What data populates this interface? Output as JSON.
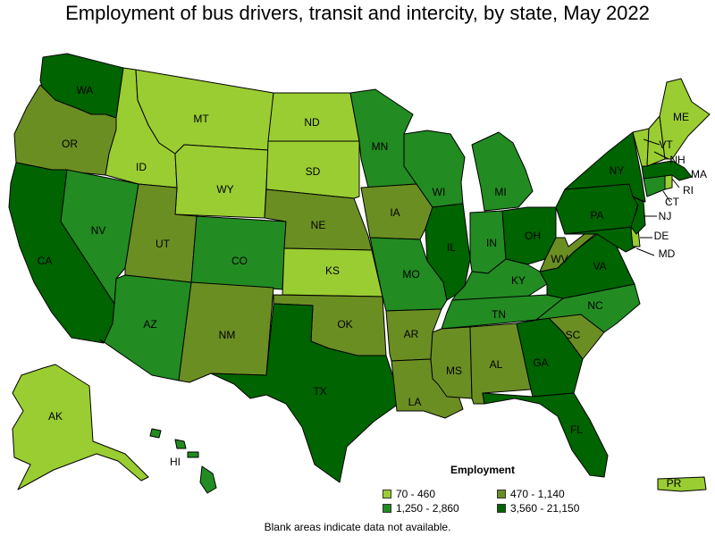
{
  "title": "Employment of bus drivers, transit and intercity, by state, May 2022",
  "legend": {
    "title": "Employment",
    "items": [
      {
        "label": "70 - 460",
        "color": "#9acd32"
      },
      {
        "label": "470 - 1,140",
        "color": "#6b8e23"
      },
      {
        "label": "1,250 - 2,860",
        "color": "#228b22"
      },
      {
        "label": "3,560 - 21,150",
        "color": "#006400"
      }
    ]
  },
  "footnote": "Blank areas indicate data not available.",
  "states": {
    "WA": 3,
    "OR": 1,
    "CA": 3,
    "NV": 2,
    "ID": 0,
    "MT": 0,
    "WY": 0,
    "UT": 1,
    "AZ": 2,
    "CO": 2,
    "NM": 1,
    "ND": 0,
    "SD": 0,
    "NE": 1,
    "KS": 0,
    "OK": 1,
    "TX": 3,
    "MN": 2,
    "IA": 1,
    "MO": 2,
    "AR": 1,
    "LA": 1,
    "WI": 2,
    "IL": 3,
    "MI": 2,
    "IN": 2,
    "OH": 3,
    "KY": 2,
    "TN": 2,
    "MS": 1,
    "AL": 1,
    "GA": 3,
    "FL": 3,
    "SC": 1,
    "NC": 2,
    "VA": 3,
    "WV": 1,
    "PA": 3,
    "NY": 3,
    "VT": 0,
    "NH": 0,
    "ME": 0,
    "MA": 3,
    "RI": 0,
    "CT": 2,
    "NJ": 3,
    "DE": 0,
    "MD": 3,
    "AK": 0,
    "HI": 2,
    "PR": 0
  }
}
